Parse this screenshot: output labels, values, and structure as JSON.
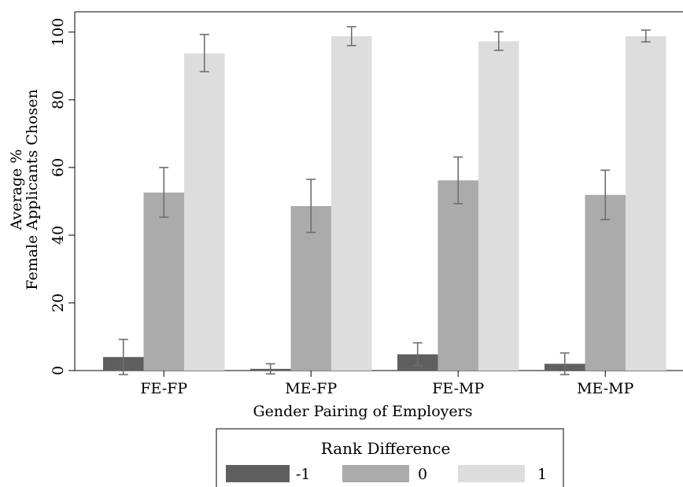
{
  "chart_data": {
    "type": "bar",
    "xlabel": "Gender Pairing of Employers",
    "ylabel_lines": [
      "Average %",
      "Female Applicants Chosen"
    ],
    "categories": [
      "FE-FP",
      "ME-FP",
      "FE-MP",
      "ME-MP"
    ],
    "ylim": [
      0,
      106
    ],
    "yticks": [
      0,
      20,
      40,
      60,
      80,
      100
    ],
    "legend": {
      "title": "Rank Difference",
      "position": "bottom"
    },
    "series": [
      {
        "name": "-1",
        "color": "#5f5f5f",
        "values": [
          4.0,
          0.5,
          4.8,
          2.0
        ],
        "ci_low": [
          -1.2,
          -1.0,
          1.5,
          -1.2
        ],
        "ci_high": [
          9.2,
          2.0,
          8.2,
          5.2
        ]
      },
      {
        "name": "0",
        "color": "#ababab",
        "values": [
          52.6,
          48.6,
          56.2,
          51.9
        ],
        "ci_low": [
          45.3,
          40.8,
          49.3,
          44.6
        ],
        "ci_high": [
          60.0,
          56.5,
          63.1,
          59.2
        ]
      },
      {
        "name": "1",
        "color": "#dddddd",
        "values": [
          93.7,
          98.8,
          97.3,
          98.8
        ],
        "ci_low": [
          88.3,
          96.0,
          94.6,
          97.1
        ],
        "ci_high": [
          99.3,
          101.6,
          100.1,
          100.6
        ]
      }
    ]
  }
}
